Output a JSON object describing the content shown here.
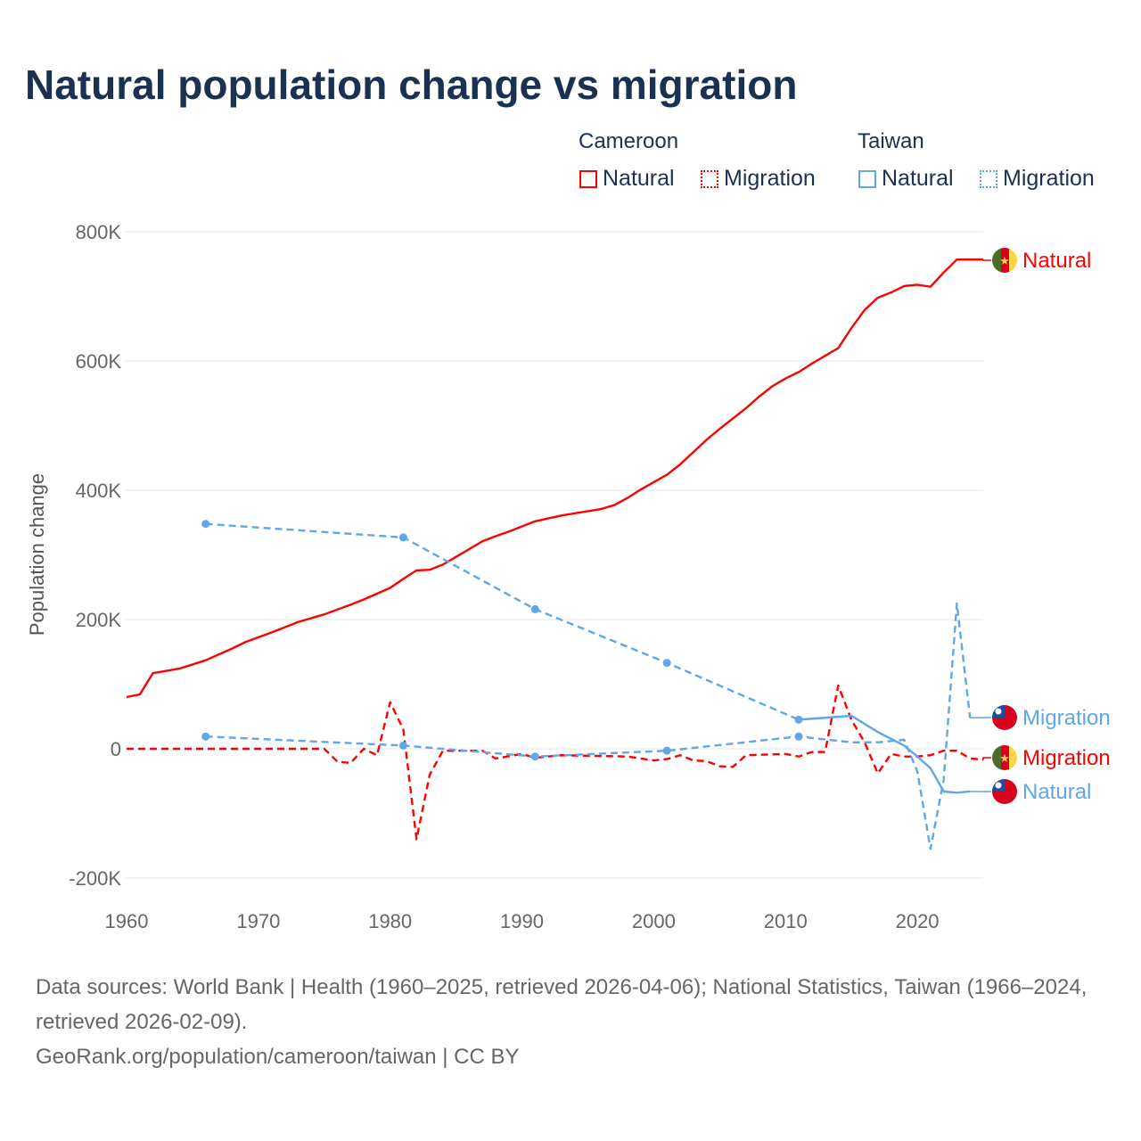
{
  "title": "Natural population change vs migration",
  "legend": {
    "groups": [
      {
        "name": "Cameroon",
        "items": [
          "Natural",
          "Migration"
        ],
        "color": "#ff0000"
      },
      {
        "name": "Taiwan",
        "items": [
          "Natural",
          "Migration"
        ],
        "color": "#5fa6ea"
      }
    ]
  },
  "footer": {
    "sources": "Data sources: World Bank | Health (1960–2025, retrieved 2026-04-06); National Statistics, Taiwan (1966–2024, retrieved 2026-02-09).",
    "credit": "GeoRank.org/population/cameroon/taiwan | CC BY"
  },
  "chart_data": {
    "type": "line",
    "title": "Natural population change vs migration",
    "xlabel": "",
    "ylabel": "Population change",
    "xlim": [
      1960,
      2025
    ],
    "ylim": [
      -200000,
      800000
    ],
    "x_ticks": [
      1960,
      1970,
      1980,
      1990,
      2000,
      2010,
      2020
    ],
    "y_ticks": [
      {
        "value": 800000,
        "label": "800K"
      },
      {
        "value": 600000,
        "label": "600K"
      },
      {
        "value": 400000,
        "label": "400K"
      },
      {
        "value": 200000,
        "label": "200K"
      },
      {
        "value": 0,
        "label": "0"
      },
      {
        "value": -200000,
        "label": "-200K"
      }
    ],
    "grid": true,
    "series": [
      {
        "name": "Natural",
        "country": "Cameroon",
        "color": "#ff0000",
        "style": "solid",
        "end_label": "Natural",
        "points": [
          [
            1960,
            80000
          ],
          [
            1961,
            84000
          ],
          [
            1962,
            117000
          ],
          [
            1964,
            124000
          ],
          [
            1966,
            137000
          ],
          [
            1968,
            155000
          ],
          [
            1969,
            165000
          ],
          [
            1971,
            180000
          ],
          [
            1973,
            196000
          ],
          [
            1975,
            208000
          ],
          [
            1977,
            223000
          ],
          [
            1978,
            231000
          ],
          [
            1980,
            249000
          ],
          [
            1981,
            263000
          ],
          [
            1982,
            276000
          ],
          [
            1983,
            277000
          ],
          [
            1984,
            285000
          ],
          [
            1987,
            321000
          ],
          [
            1988,
            329000
          ],
          [
            1989,
            336000
          ],
          [
            1991,
            352000
          ],
          [
            1993,
            361000
          ],
          [
            1996,
            371000
          ],
          [
            1997,
            377000
          ],
          [
            1998,
            388000
          ],
          [
            1999,
            401000
          ],
          [
            2001,
            424000
          ],
          [
            2002,
            440000
          ],
          [
            2004,
            478000
          ],
          [
            2005,
            495000
          ],
          [
            2007,
            527000
          ],
          [
            2008,
            545000
          ],
          [
            2009,
            561000
          ],
          [
            2010,
            573000
          ],
          [
            2011,
            583000
          ],
          [
            2012,
            596000
          ],
          [
            2013,
            608000
          ],
          [
            2014,
            620000
          ],
          [
            2015,
            651000
          ],
          [
            2016,
            679000
          ],
          [
            2017,
            698000
          ],
          [
            2018,
            706000
          ],
          [
            2019,
            716000
          ],
          [
            2020,
            718000
          ],
          [
            2021,
            715000
          ],
          [
            2022,
            737000
          ],
          [
            2023,
            757000
          ],
          [
            2024,
            757000
          ],
          [
            2025,
            757000
          ]
        ]
      },
      {
        "name": "Migration",
        "country": "Cameroon",
        "color": "#ff0000",
        "style": "dashed",
        "end_label": "Migration",
        "points": [
          [
            1960,
            0
          ],
          [
            1975,
            0
          ],
          [
            1976,
            -20000
          ],
          [
            1977,
            -22000
          ],
          [
            1978,
            0
          ],
          [
            1979,
            -10000
          ],
          [
            1980,
            72000
          ],
          [
            1981,
            30000
          ],
          [
            1982,
            -140000
          ],
          [
            1983,
            -40000
          ],
          [
            1984,
            -3000
          ],
          [
            1987,
            -3000
          ],
          [
            1988,
            -15000
          ],
          [
            1990,
            -8000
          ],
          [
            1991,
            -14000
          ],
          [
            1993,
            -10000
          ],
          [
            1998,
            -12000
          ],
          [
            2000,
            -18000
          ],
          [
            2001,
            -16000
          ],
          [
            2002,
            -10000
          ],
          [
            2003,
            -18000
          ],
          [
            2004,
            -19000
          ],
          [
            2005,
            -27000
          ],
          [
            2006,
            -28000
          ],
          [
            2007,
            -10000
          ],
          [
            2010,
            -8000
          ],
          [
            2011,
            -12000
          ],
          [
            2012,
            -5000
          ],
          [
            2013,
            -5000
          ],
          [
            2014,
            98000
          ],
          [
            2015,
            45000
          ],
          [
            2016,
            10000
          ],
          [
            2017,
            -38000
          ],
          [
            2018,
            -8000
          ],
          [
            2019,
            -12000
          ],
          [
            2020,
            -12000
          ],
          [
            2021,
            -10000
          ],
          [
            2022,
            -3000
          ],
          [
            2023,
            -3000
          ],
          [
            2024,
            -15000
          ],
          [
            2025,
            -17000
          ]
        ]
      },
      {
        "name": "Natural",
        "country": "Taiwan",
        "color": "#5fa6ea",
        "style": "solid",
        "end_label": "Natural",
        "markers": [
          1966,
          1981,
          1991,
          2001,
          2011
        ],
        "points": [
          [
            1966,
            348000
          ],
          [
            1981,
            327000
          ],
          [
            1991,
            216000
          ],
          [
            2001,
            133000
          ],
          [
            2011,
            45000
          ],
          [
            2015,
            51000
          ],
          [
            2017,
            26000
          ],
          [
            2019,
            5000
          ],
          [
            2020,
            -12000
          ],
          [
            2021,
            -30000
          ],
          [
            2022,
            -66000
          ],
          [
            2023,
            -68000
          ],
          [
            2024,
            -66000
          ]
        ]
      },
      {
        "name": "Migration",
        "country": "Taiwan",
        "color": "#5fa6ea",
        "style": "dashed",
        "end_label": "Migration",
        "markers": [
          1966,
          1981,
          1991,
          2001,
          2011
        ],
        "points": [
          [
            1966,
            19000
          ],
          [
            1981,
            5000
          ],
          [
            1991,
            -12000
          ],
          [
            2001,
            -3000
          ],
          [
            2011,
            19000
          ],
          [
            2015,
            10000
          ],
          [
            2017,
            10000
          ],
          [
            2019,
            14000
          ],
          [
            2020,
            -35000
          ],
          [
            2021,
            -155000
          ],
          [
            2022,
            -48000
          ],
          [
            2023,
            225000
          ],
          [
            2024,
            48000
          ]
        ]
      }
    ]
  }
}
